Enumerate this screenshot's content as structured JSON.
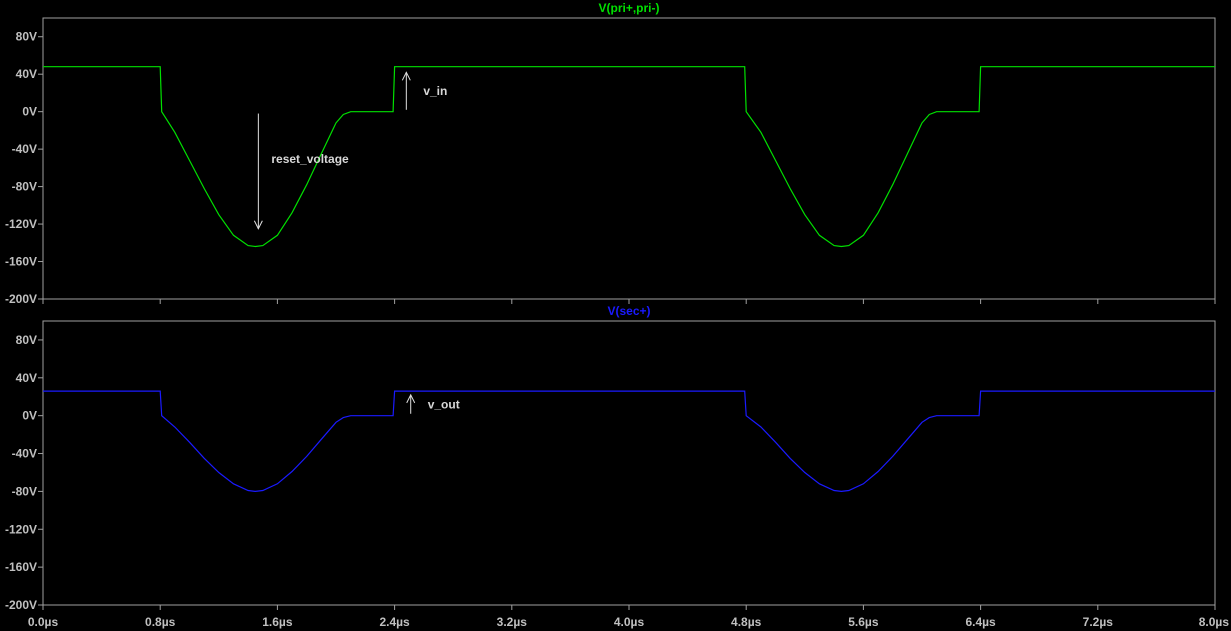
{
  "chart_data": [
    {
      "type": "line",
      "title": "V(pri+,pri-)",
      "title_color": "#00e000",
      "line_color": "#00e000",
      "ylim": [
        -200,
        100
      ],
      "yticks": [
        80,
        40,
        0,
        -40,
        -80,
        -120,
        -160,
        -200
      ],
      "ytick_labels": [
        "80V",
        "40V",
        "0V",
        "-40V",
        "-80V",
        "-120V",
        "-160V",
        "-200V"
      ],
      "xlim": [
        0,
        8.0
      ],
      "series": [
        {
          "x": [
            0,
            0.8,
            0.81,
            0.9,
            1.0,
            1.1,
            1.2,
            1.3,
            1.4,
            1.45,
            1.5,
            1.6,
            1.7,
            1.8,
            1.9,
            2.0,
            2.05,
            2.1,
            2.39,
            2.4,
            4.79,
            4.8,
            4.9,
            5.0,
            5.1,
            5.2,
            5.3,
            5.4,
            5.45,
            5.5,
            5.6,
            5.7,
            5.8,
            5.9,
            6.0,
            6.05,
            6.1,
            6.39,
            6.4,
            8.0
          ],
          "y": [
            48,
            48,
            0,
            -22,
            -52,
            -82,
            -110,
            -132,
            -143,
            -144,
            -143,
            -132,
            -108,
            -78,
            -45,
            -12,
            -3,
            0,
            0,
            48,
            48,
            0,
            -22,
            -52,
            -82,
            -110,
            -132,
            -143,
            -144,
            -143,
            -132,
            -108,
            -78,
            -45,
            -12,
            -3,
            0,
            0,
            48,
            48
          ]
        }
      ],
      "annotations": [
        {
          "text": "reset_voltage",
          "arrow_x": 1.47,
          "arrow_from": -2,
          "arrow_to": -125,
          "direction": "down"
        },
        {
          "text": "v_in",
          "arrow_x": 2.48,
          "arrow_from": 2,
          "arrow_to": 42,
          "direction": "up"
        }
      ]
    },
    {
      "type": "line",
      "title": "V(sec+)",
      "title_color": "#1a1aff",
      "line_color": "#1a1aff",
      "ylim": [
        -200,
        100
      ],
      "yticks": [
        80,
        40,
        0,
        -40,
        -80,
        -120,
        -160,
        -200
      ],
      "ytick_labels": [
        "80V",
        "40V",
        "0V",
        "-40V",
        "-80V",
        "-120V",
        "-160V",
        "-200V"
      ],
      "xlim": [
        0,
        8.0
      ],
      "xticks": [
        0.0,
        0.8,
        1.6,
        2.4,
        3.2,
        4.0,
        4.8,
        5.6,
        6.4,
        7.2,
        8.0
      ],
      "xtick_labels": [
        "0.0µs",
        "0.8µs",
        "1.6µs",
        "2.4µs",
        "3.2µs",
        "4.0µs",
        "4.8µs",
        "5.6µs",
        "6.4µs",
        "7.2µs",
        "8.0µs"
      ],
      "series": [
        {
          "x": [
            0,
            0.8,
            0.81,
            0.9,
            1.0,
            1.1,
            1.2,
            1.3,
            1.4,
            1.45,
            1.5,
            1.6,
            1.7,
            1.8,
            1.9,
            2.0,
            2.05,
            2.1,
            2.39,
            2.4,
            4.79,
            4.8,
            4.9,
            5.0,
            5.1,
            5.2,
            5.3,
            5.4,
            5.45,
            5.5,
            5.6,
            5.7,
            5.8,
            5.9,
            6.0,
            6.05,
            6.1,
            6.39,
            6.4,
            8.0
          ],
          "y": [
            26,
            26,
            0,
            -12,
            -28,
            -45,
            -60,
            -72,
            -79,
            -80,
            -79,
            -72,
            -59,
            -43,
            -25,
            -7,
            -2,
            0,
            0,
            26,
            26,
            0,
            -12,
            -28,
            -45,
            -60,
            -72,
            -79,
            -80,
            -79,
            -72,
            -59,
            -43,
            -25,
            -7,
            -2,
            0,
            0,
            26,
            26
          ]
        }
      ],
      "annotations": [
        {
          "text": "v_out",
          "arrow_x": 2.51,
          "arrow_from": 2,
          "arrow_to": 22,
          "direction": "up"
        }
      ]
    }
  ]
}
